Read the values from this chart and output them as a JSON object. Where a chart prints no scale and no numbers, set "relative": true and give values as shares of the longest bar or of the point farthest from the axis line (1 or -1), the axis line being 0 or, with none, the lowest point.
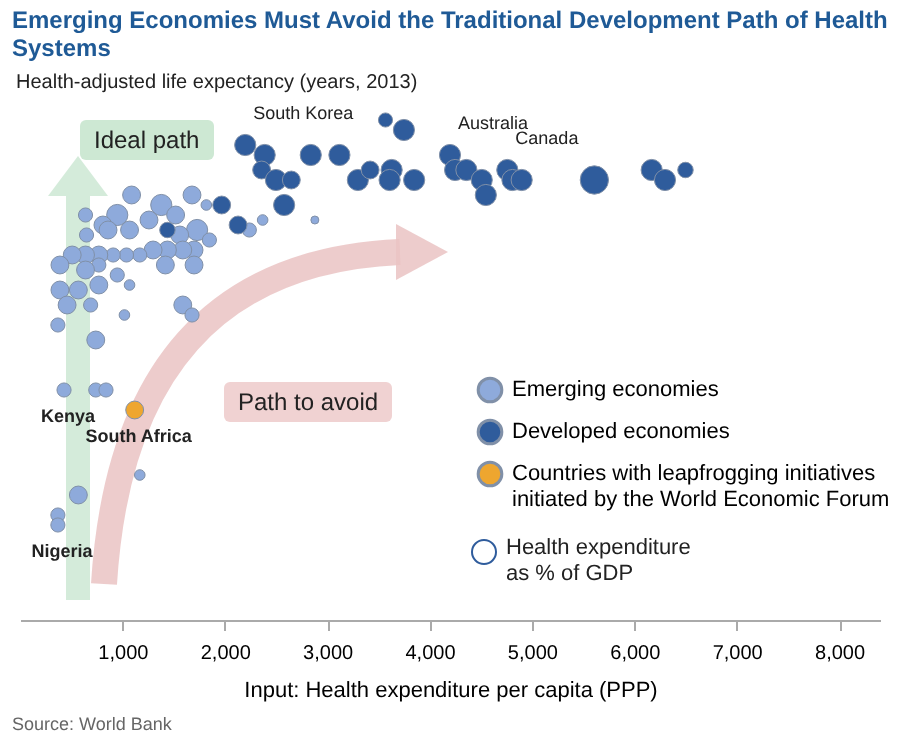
{
  "chart_data": {
    "type": "bubble",
    "title": "Emerging Economies Must Avoid the Traditional Development Path of Health Systems",
    "ylabel": "Health-adjusted life expectancy (years, 2013)",
    "xlabel": "Input: Health expenditure per capita (PPP)",
    "relative": true,
    "xlim": [
      0,
      8400
    ],
    "xticks": [
      {
        "value": 1000,
        "label": "1,000"
      },
      {
        "value": 2000,
        "label": "2,000"
      },
      {
        "value": 3000,
        "label": "3,000"
      },
      {
        "value": 4000,
        "label": "4,000"
      },
      {
        "value": 5000,
        "label": "5,000"
      },
      {
        "value": 6000,
        "label": "6,000"
      },
      {
        "value": 7000,
        "label": "7,000"
      },
      {
        "value": 8000,
        "label": "8,000"
      }
    ],
    "marker": "circle",
    "legend": "bottom right",
    "series": [
      {
        "name": "Emerging economies",
        "color": "#8eaadb",
        "x": [
          1090,
          1680,
          1820,
          1380,
          1260,
          950,
          810,
          640,
          650,
          860,
          1070,
          1520,
          1730,
          1560,
          1850,
          1700,
          1590,
          1440,
          1300,
          1170,
          1040,
          910,
          770,
          640,
          510,
          1420,
          1700,
          770,
          640,
          390,
          390,
          570,
          770,
          1070,
          460,
          690,
          1590,
          1680,
          1020,
          370,
          740,
          950,
          2370,
          2880,
          2240,
          430,
          740,
          840,
          1170,
          570,
          370,
          370
        ],
        "values": [
          0.85,
          0.85,
          0.83,
          0.83,
          0.8,
          0.81,
          0.79,
          0.81,
          0.77,
          0.78,
          0.78,
          0.81,
          0.78,
          0.77,
          0.76,
          0.74,
          0.74,
          0.74,
          0.74,
          0.73,
          0.73,
          0.73,
          0.73,
          0.73,
          0.73,
          0.71,
          0.71,
          0.71,
          0.7,
          0.71,
          0.66,
          0.66,
          0.67,
          0.67,
          0.63,
          0.63,
          0.63,
          0.61,
          0.61,
          0.59,
          0.56,
          0.69,
          0.8,
          0.8,
          0.78,
          0.46,
          0.46,
          0.46,
          0.29,
          0.25,
          0.21,
          0.19
        ],
        "sizes": [
          0.4,
          0.4,
          0.14,
          0.56,
          0.4,
          0.56,
          0.4,
          0.25,
          0.25,
          0.4,
          0.4,
          0.4,
          0.56,
          0.4,
          0.25,
          0.4,
          0.4,
          0.4,
          0.4,
          0.25,
          0.25,
          0.25,
          0.4,
          0.4,
          0.4,
          0.4,
          0.4,
          0.25,
          0.4,
          0.4,
          0.4,
          0.4,
          0.4,
          0.14,
          0.4,
          0.25,
          0.4,
          0.25,
          0.14,
          0.25,
          0.4,
          0.25,
          0.14,
          0.08,
          0.25,
          0.25,
          0.25,
          0.25,
          0.14,
          0.4,
          0.25,
          0.25
        ]
      },
      {
        "name": "Developed economies",
        "color": "#2f5c9c",
        "x": [
          2200,
          2390,
          2360,
          2500,
          2650,
          2580,
          2840,
          3120,
          3300,
          3420,
          3630,
          3610,
          3850,
          3570,
          3750,
          4200,
          4250,
          4360,
          4510,
          4550,
          4760,
          4810,
          4900,
          5610,
          6170,
          6300,
          6500,
          1970,
          2130,
          1440
        ],
        "values": [
          0.95,
          0.93,
          0.9,
          0.88,
          0.88,
          0.83,
          0.93,
          0.93,
          0.88,
          0.9,
          0.9,
          0.88,
          0.88,
          1,
          0.98,
          0.93,
          0.9,
          0.9,
          0.88,
          0.85,
          0.9,
          0.88,
          0.88,
          0.88,
          0.9,
          0.88,
          0.9,
          0.83,
          0.79,
          0.78
        ],
        "sizes": [
          0.56,
          0.56,
          0.4,
          0.56,
          0.4,
          0.56,
          0.56,
          0.56,
          0.56,
          0.4,
          0.56,
          0.56,
          0.56,
          0.25,
          0.56,
          0.56,
          0.56,
          0.56,
          0.56,
          0.56,
          0.56,
          0.56,
          0.56,
          1,
          0.56,
          0.56,
          0.3,
          0.4,
          0.4,
          0.3
        ]
      },
      {
        "name": "Countries with leapfrogging initiatives\ninitiated by the World Economic Forum",
        "color": "#eea62f",
        "x": [
          1120
        ],
        "values": [
          0.42
        ],
        "sizes": [
          0.4
        ]
      }
    ],
    "annotations": [
      "Ideal path",
      "Path to avoid",
      "Health expenditure\nas % of GDP",
      "Source: World Bank",
      {
        "text": "South Korea",
        "x": 2200,
        "y": 0.95
      },
      {
        "text": "Australia",
        "x": 4200,
        "y": 0.93
      },
      {
        "text": "Canada",
        "x": 4760,
        "y": 0.9
      },
      {
        "text": "Kenya",
        "x": 430,
        "y": 0.46
      },
      {
        "text": "Nigeria",
        "x": 370,
        "y": 0.19
      },
      {
        "text": "South Africa",
        "x": 1120,
        "y": 0.42
      }
    ]
  }
}
